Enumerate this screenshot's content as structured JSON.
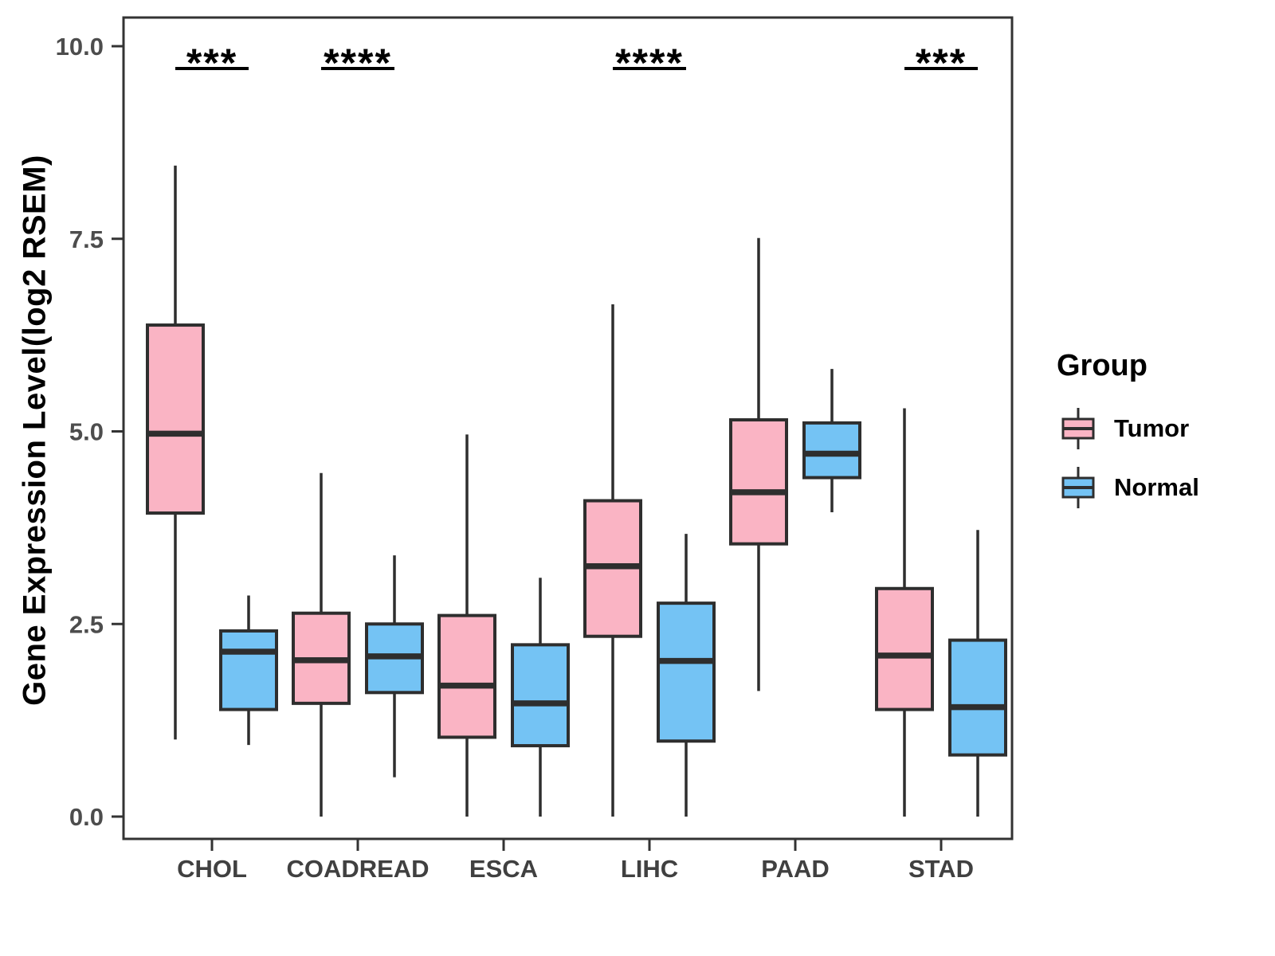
{
  "figure": {
    "background": "#FFFFFF"
  },
  "chart_data": {
    "type": "boxplot",
    "title": "",
    "xlabel": "",
    "ylabel": "Gene Expression Level(log2 RSEM)",
    "ylim": [
      0,
      10.3
    ],
    "yticks": [
      0.0,
      2.5,
      5.0,
      7.5,
      10.0
    ],
    "ytick_labels": [
      "0.0",
      "2.5",
      "5.0",
      "7.5",
      "10.0"
    ],
    "categories": [
      "CHOL",
      "COADREAD",
      "ESCA",
      "LIHC",
      "PAAD",
      "STAD"
    ],
    "grid": false,
    "legend_position": "right",
    "series": [
      {
        "name": "Tumor",
        "color": "#FAB4C4",
        "boxes": [
          {
            "category": "CHOL",
            "min": 1.0,
            "q1": 3.94,
            "median": 4.97,
            "q3": 6.38,
            "max": 8.45
          },
          {
            "category": "COADREAD",
            "min": 0.0,
            "q1": 1.47,
            "median": 2.03,
            "q3": 2.64,
            "max": 4.46
          },
          {
            "category": "ESCA",
            "min": 0.0,
            "q1": 1.03,
            "median": 1.7,
            "q3": 2.61,
            "max": 4.96
          },
          {
            "category": "LIHC",
            "min": 0.0,
            "q1": 2.34,
            "median": 3.25,
            "q3": 4.1,
            "max": 6.65
          },
          {
            "category": "PAAD",
            "min": 1.63,
            "q1": 3.54,
            "median": 4.21,
            "q3": 5.15,
            "max": 7.51
          },
          {
            "category": "STAD",
            "min": 0.0,
            "q1": 1.39,
            "median": 2.09,
            "q3": 2.96,
            "max": 5.3
          }
        ]
      },
      {
        "name": "Normal",
        "color": "#74C3F4",
        "boxes": [
          {
            "category": "CHOL",
            "min": 0.93,
            "q1": 1.39,
            "median": 2.14,
            "q3": 2.41,
            "max": 2.87
          },
          {
            "category": "COADREAD",
            "min": 0.51,
            "q1": 1.61,
            "median": 2.08,
            "q3": 2.5,
            "max": 3.39
          },
          {
            "category": "ESCA",
            "min": 0.0,
            "q1": 0.92,
            "median": 1.47,
            "q3": 2.23,
            "max": 3.1
          },
          {
            "category": "LIHC",
            "min": 0.0,
            "q1": 0.98,
            "median": 2.02,
            "q3": 2.77,
            "max": 3.67
          },
          {
            "category": "PAAD",
            "min": 3.95,
            "q1": 4.4,
            "median": 4.71,
            "q3": 5.11,
            "max": 5.81
          },
          {
            "category": "STAD",
            "min": 0.0,
            "q1": 0.8,
            "median": 1.42,
            "q3": 2.29,
            "max": 3.72
          }
        ]
      }
    ],
    "significance": [
      {
        "category": "CHOL",
        "label": "***"
      },
      {
        "category": "COADREAD",
        "label": "****"
      },
      {
        "category": "LIHC",
        "label": "****"
      },
      {
        "category": "STAD",
        "label": "***"
      }
    ]
  },
  "legend": {
    "title": "Group",
    "items": [
      {
        "label": "Tumor",
        "color": "#FAB4C4"
      },
      {
        "label": "Normal",
        "color": "#74C3F4"
      }
    ]
  },
  "styles": {
    "box_stroke": "#2E2E2E",
    "axis_color": "#333333",
    "ytick_text_color": "#4D4D4D",
    "xtick_text_color": "#404040",
    "significance_color": "#000000"
  }
}
